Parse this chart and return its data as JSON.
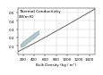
{
  "title_line1": "Thermal Conductivity",
  "title_line2": "(W/m·K)",
  "xlabel": "Bulk Density (kg / m³)",
  "xlim": [
    100,
    1500
  ],
  "ylim": [
    0.0,
    0.55
  ],
  "xticks": [
    200,
    400,
    600,
    800,
    1000,
    1200,
    1400
  ],
  "yticks": [
    0.1,
    0.2,
    0.3,
    0.4,
    0.5
  ],
  "curve_x0": 100,
  "curve_x1": 1500,
  "curve_y0": 0.03,
  "curve_y1": 0.54,
  "band_top_x": [
    160,
    220,
    280,
    340,
    400,
    450,
    490
  ],
  "band_top_y": [
    0.12,
    0.155,
    0.185,
    0.215,
    0.245,
    0.265,
    0.28
  ],
  "band_bot_x": [
    490,
    450,
    400,
    340,
    280,
    220,
    160
  ],
  "band_bot_y": [
    0.235,
    0.215,
    0.188,
    0.158,
    0.128,
    0.098,
    0.078
  ],
  "band_color": "#7a9e9f",
  "band_alpha": 0.55,
  "band_edge_color": "#4a7a7a",
  "band_edge_width": 0.4,
  "line_color": "#666666",
  "line_width": 0.7,
  "bg_color": "#ffffff",
  "grid_color": "#cccccc",
  "grid_lw": 0.3,
  "tick_fontsize": 3.0,
  "title_fontsize": 3.2,
  "xlabel_fontsize": 3.0
}
